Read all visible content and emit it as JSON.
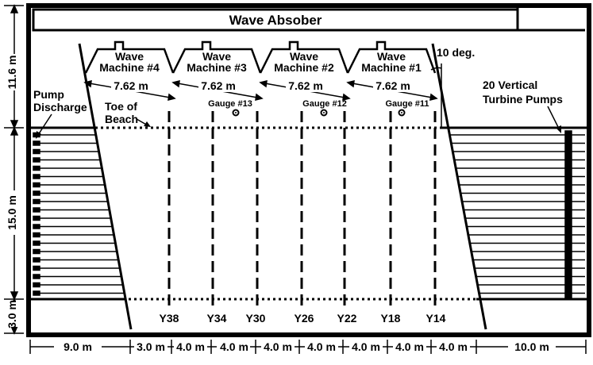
{
  "title": "Wave Absober",
  "wave_machines": [
    {
      "name": "Wave Machine #4",
      "line1": "Wave",
      "line2": "Machine #4",
      "width": "7.62 m"
    },
    {
      "name": "Wave Machine #3",
      "line1": "Wave",
      "line2": "Machine #3",
      "width": "7.62 m"
    },
    {
      "name": "Wave Machine #2",
      "line1": "Wave",
      "line2": "Machine #2",
      "width": "7.62 m"
    },
    {
      "name": "Wave Machine #1",
      "line1": "Wave",
      "line2": "Machine #1",
      "width": "7.62 m"
    }
  ],
  "angle_label": "10 deg.",
  "gauges": [
    "Gauge #13",
    "Gauge #12",
    "Gauge #11"
  ],
  "toe_of_beach": {
    "line1": "Toe of",
    "line2": "Beach"
  },
  "pump_discharge": {
    "line1": "Pump",
    "line2": "Discharge"
  },
  "turbine_pumps": {
    "line1": "20  Vertical",
    "line2": "Turbine Pumps"
  },
  "profile_lines": [
    "Y38",
    "Y34",
    "Y30",
    "Y26",
    "Y22",
    "Y18",
    "Y14"
  ],
  "vertical_dims": [
    "11.6 m",
    "15.0 m",
    "3.0 m"
  ],
  "horizontal_dims": [
    "9.0 m",
    "3.0 m",
    "4.0 m",
    "4.0 m",
    "4.0 m",
    "4.0 m",
    "4.0 m",
    "4.0 m",
    "4.0 m",
    "10.0 m"
  ]
}
